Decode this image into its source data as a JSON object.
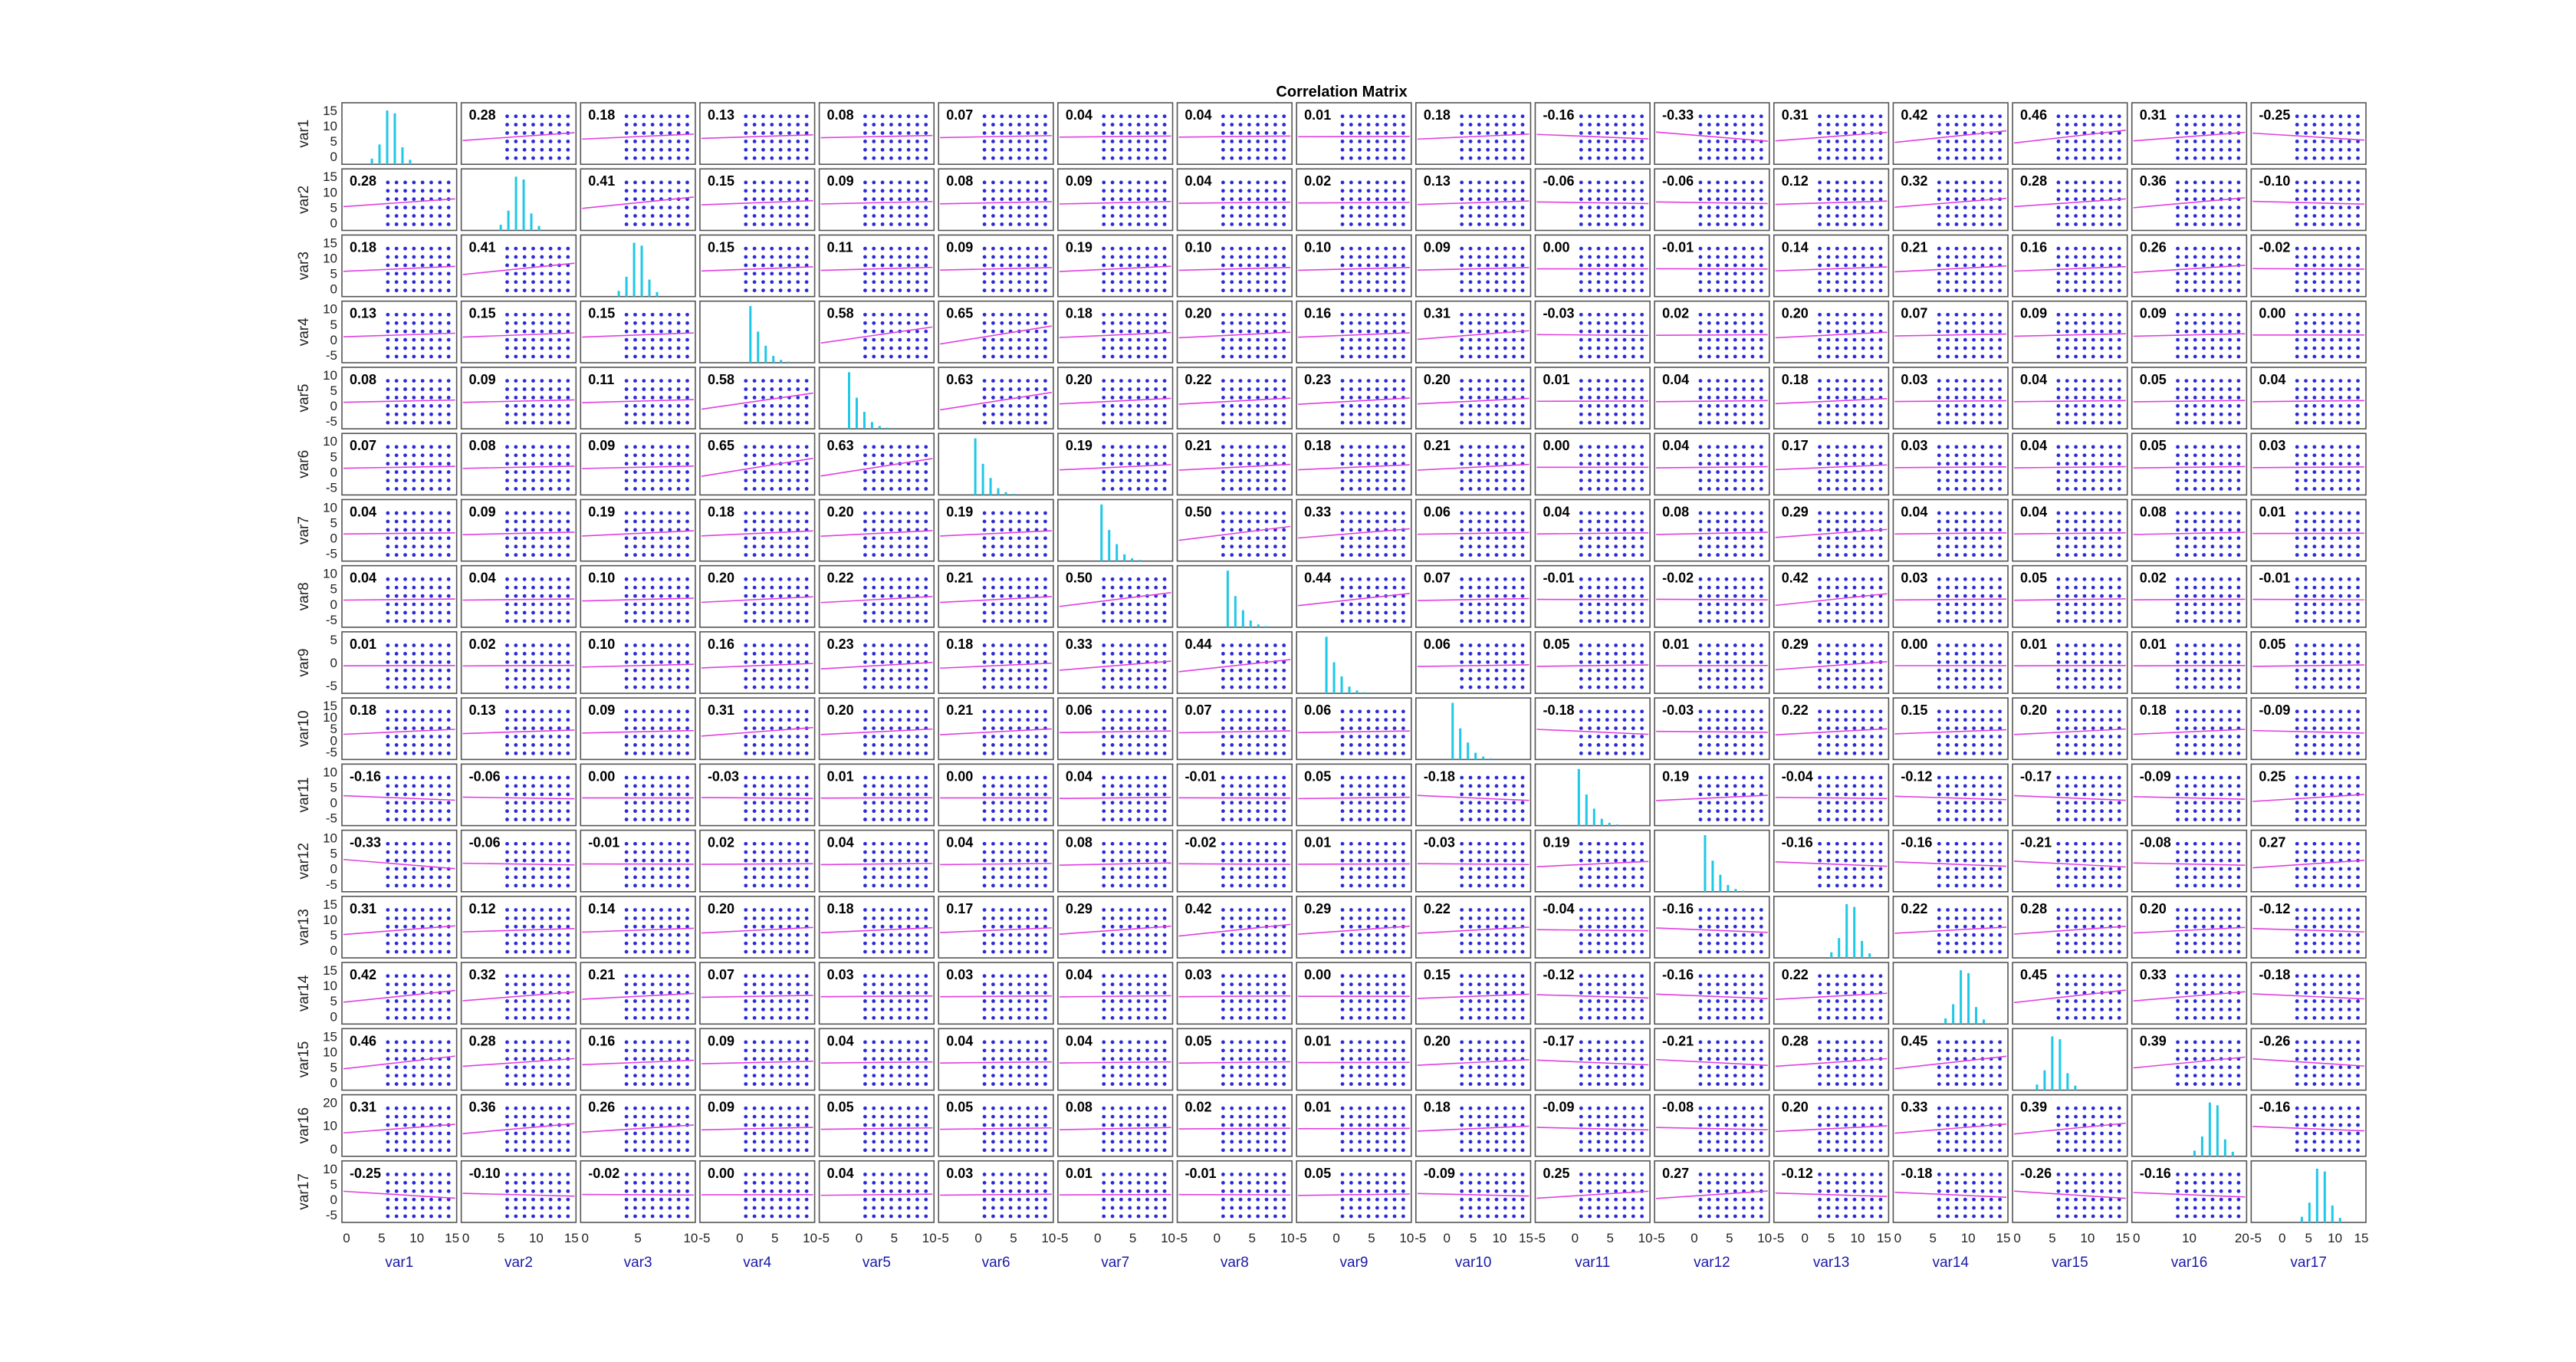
{
  "chart_data": {
    "type": "scatter-matrix",
    "title": "Correlation Matrix",
    "variables": [
      "var1",
      "var2",
      "var3",
      "var4",
      "var5",
      "var6",
      "var7",
      "var8",
      "var9",
      "var10",
      "var11",
      "var12",
      "var13",
      "var14",
      "var15",
      "var16",
      "var17"
    ],
    "correlation": [
      [
        null,
        0.28,
        0.18,
        0.13,
        0.08,
        0.07,
        0.04,
        0.04,
        0.01,
        0.18,
        -0.16,
        -0.33,
        0.31,
        0.42,
        0.46,
        0.31,
        -0.25
      ],
      [
        0.28,
        null,
        0.41,
        0.15,
        0.09,
        0.08,
        0.09,
        0.04,
        0.02,
        0.13,
        -0.06,
        -0.06,
        0.12,
        0.32,
        0.28,
        0.36,
        -0.1
      ],
      [
        0.18,
        0.41,
        null,
        0.15,
        0.11,
        0.09,
        0.19,
        0.1,
        0.1,
        0.09,
        0.0,
        -0.01,
        0.14,
        0.21,
        0.16,
        0.26,
        -0.02
      ],
      [
        0.13,
        0.15,
        0.15,
        null,
        0.58,
        0.65,
        0.18,
        0.2,
        0.16,
        0.31,
        -0.03,
        0.02,
        0.2,
        0.07,
        0.09,
        0.09,
        -0.0
      ],
      [
        0.08,
        0.09,
        0.11,
        0.58,
        null,
        0.63,
        0.2,
        0.22,
        0.23,
        0.2,
        0.01,
        0.04,
        0.18,
        0.03,
        0.04,
        0.05,
        0.04
      ],
      [
        0.07,
        0.08,
        0.09,
        0.65,
        0.63,
        null,
        0.19,
        0.21,
        0.18,
        0.21,
        -0.0,
        0.04,
        0.17,
        0.03,
        0.04,
        0.05,
        0.03
      ],
      [
        0.04,
        0.09,
        0.19,
        0.18,
        0.2,
        0.19,
        null,
        0.5,
        0.33,
        0.06,
        0.04,
        0.08,
        0.29,
        0.04,
        0.04,
        0.08,
        0.01
      ],
      [
        0.04,
        0.04,
        0.1,
        0.2,
        0.22,
        0.21,
        0.5,
        null,
        0.44,
        0.07,
        -0.01,
        -0.02,
        0.42,
        0.03,
        0.05,
        0.02,
        -0.01
      ],
      [
        0.01,
        0.02,
        0.1,
        0.16,
        0.23,
        0.18,
        0.33,
        0.44,
        null,
        0.06,
        0.05,
        0.01,
        0.29,
        -0.0,
        0.01,
        0.01,
        0.05
      ],
      [
        0.18,
        0.13,
        0.09,
        0.31,
        0.2,
        0.21,
        0.06,
        0.07,
        0.06,
        null,
        -0.18,
        -0.03,
        0.22,
        0.15,
        0.2,
        0.18,
        -0.09
      ],
      [
        -0.16,
        -0.06,
        0.0,
        -0.03,
        0.01,
        -0.0,
        0.04,
        -0.01,
        0.05,
        -0.18,
        null,
        0.19,
        -0.04,
        -0.12,
        -0.17,
        -0.09,
        0.25
      ],
      [
        -0.33,
        -0.06,
        -0.01,
        0.02,
        0.04,
        0.04,
        0.08,
        -0.02,
        0.01,
        -0.03,
        0.19,
        null,
        -0.16,
        -0.16,
        -0.21,
        -0.08,
        0.27
      ],
      [
        0.31,
        0.12,
        0.14,
        0.2,
        0.18,
        0.17,
        0.29,
        0.42,
        0.29,
        0.22,
        -0.04,
        -0.16,
        null,
        0.22,
        0.28,
        0.2,
        -0.12
      ],
      [
        0.42,
        0.32,
        0.21,
        0.07,
        0.03,
        0.03,
        0.04,
        0.03,
        -0.0,
        0.15,
        -0.12,
        -0.16,
        0.22,
        null,
        0.45,
        0.33,
        -0.18
      ],
      [
        0.46,
        0.28,
        0.16,
        0.09,
        0.04,
        0.04,
        0.04,
        0.05,
        0.01,
        0.2,
        -0.17,
        -0.21,
        0.28,
        0.45,
        null,
        0.39,
        -0.26
      ],
      [
        0.31,
        0.36,
        0.26,
        0.09,
        0.05,
        0.05,
        0.08,
        0.02,
        0.01,
        0.18,
        -0.09,
        -0.08,
        0.2,
        0.33,
        0.39,
        null,
        -0.16
      ],
      [
        -0.25,
        -0.1,
        -0.02,
        -0.0,
        0.04,
        0.03,
        0.01,
        -0.01,
        0.05,
        -0.09,
        0.25,
        0.27,
        -0.12,
        -0.18,
        -0.26,
        -0.16,
        null
      ]
    ],
    "x_ticks": [
      [
        "0",
        "5",
        "10",
        "15"
      ],
      [
        "0",
        "5",
        "10",
        "15"
      ],
      [
        "0",
        "5",
        "10"
      ],
      [
        "-5",
        "0",
        "5",
        "10"
      ],
      [
        "-5",
        "0",
        "5",
        "10"
      ],
      [
        "-5",
        "0",
        "5",
        "10"
      ],
      [
        "-5",
        "0",
        "5",
        "10"
      ],
      [
        "-5",
        "0",
        "5",
        "10"
      ],
      [
        "-5",
        "0",
        "5",
        "10"
      ],
      [
        "-5",
        "0",
        "5",
        "10",
        "15"
      ],
      [
        "-5",
        "0",
        "5",
        "10"
      ],
      [
        "-5",
        "0",
        "5",
        "10"
      ],
      [
        "-5",
        "0",
        "5",
        "10",
        "15"
      ],
      [
        "0",
        "5",
        "10",
        "15"
      ],
      [
        "0",
        "5",
        "10",
        "15"
      ],
      [
        "0",
        "10",
        "20"
      ],
      [
        "-5",
        "0",
        "5",
        "10",
        "15"
      ]
    ],
    "y_ticks": [
      [
        "15",
        "10",
        "5",
        "0"
      ],
      [
        "15",
        "10",
        "5",
        "0"
      ],
      [
        "15",
        "10",
        "5",
        "0"
      ],
      [
        "10",
        "5",
        "0",
        "-5"
      ],
      [
        "10",
        "5",
        "0",
        "-5"
      ],
      [
        "10",
        "5",
        "0",
        "-5"
      ],
      [
        "10",
        "5",
        "0",
        "-5"
      ],
      [
        "10",
        "5",
        "0",
        "-5"
      ],
      [
        "5",
        "0",
        "-5"
      ],
      [
        "15",
        "10",
        "5",
        "0",
        "-5"
      ],
      [
        "10",
        "5",
        "0",
        "-5"
      ],
      [
        "10",
        "5",
        "0",
        "-5"
      ],
      [
        "15",
        "10",
        "5",
        "0"
      ],
      [
        "15",
        "10",
        "5",
        "0"
      ],
      [
        "15",
        "10",
        "5",
        "0"
      ],
      [
        "20",
        "10",
        "0"
      ],
      [
        "10",
        "5",
        "0",
        "-5"
      ]
    ],
    "colors": {
      "scatter": "#2b2bd6",
      "fit_line": "#e040e0",
      "histogram": "#1ec8e6",
      "axis": "#000000",
      "label": "#1a1aa8"
    },
    "grid": false
  }
}
